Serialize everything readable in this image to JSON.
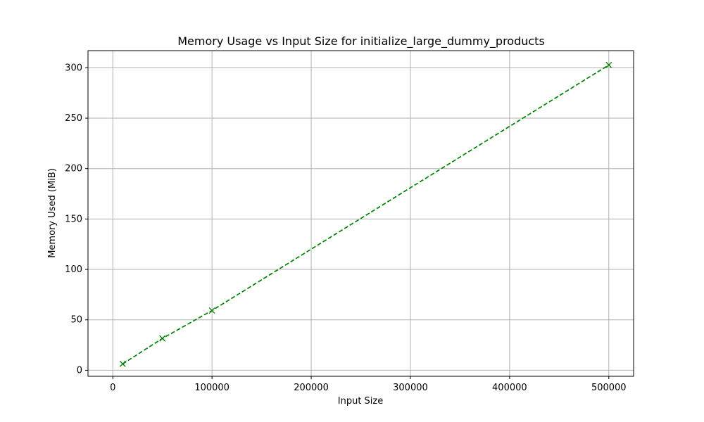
{
  "chart_data": {
    "type": "line",
    "title": "Memory Usage vs Input Size for initialize_large_dummy_products",
    "xlabel": "Input Size",
    "ylabel": "Memory Used (MiB)",
    "xlim": [
      -25000,
      525000
    ],
    "ylim": [
      -6,
      317
    ],
    "x_ticks": [
      0,
      100000,
      200000,
      300000,
      400000,
      500000
    ],
    "x_tick_labels": [
      "0",
      "100000",
      "200000",
      "300000",
      "400000",
      "500000"
    ],
    "y_ticks": [
      0,
      50,
      100,
      150,
      200,
      250,
      300
    ],
    "y_tick_labels": [
      "0",
      "50",
      "100",
      "150",
      "200",
      "250",
      "300"
    ],
    "grid": true,
    "series": [
      {
        "color": "#008000",
        "line_style": "dashed",
        "marker": "x",
        "x": [
          10000,
          50000,
          100000,
          500000
        ],
        "y": [
          6.3,
          31.5,
          59.2,
          302.8
        ]
      }
    ]
  }
}
